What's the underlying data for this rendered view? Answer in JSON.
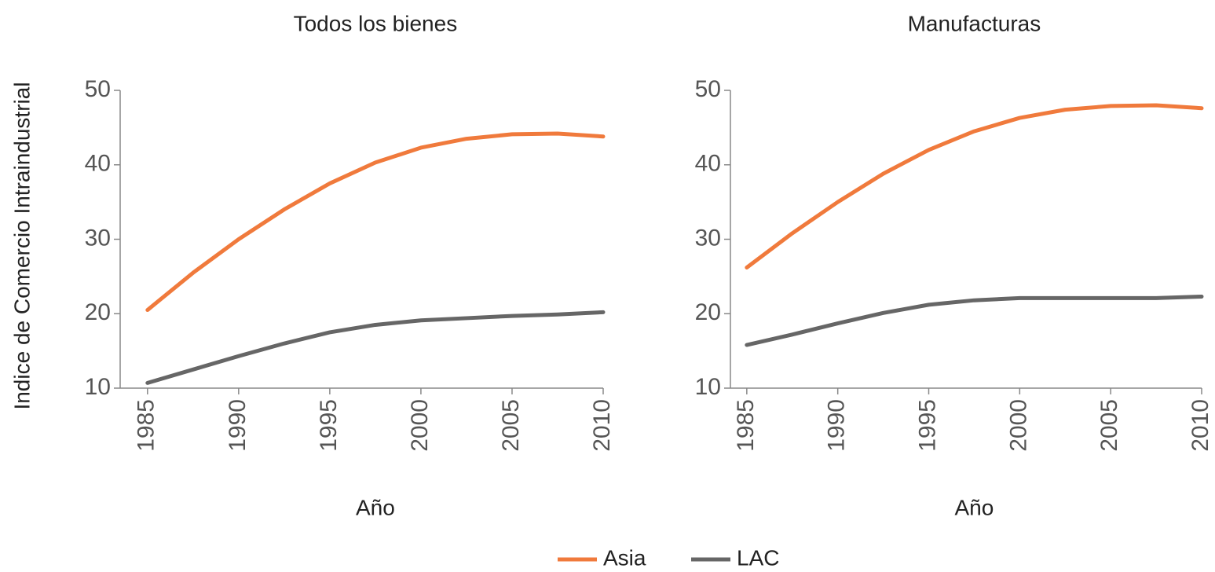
{
  "chart_data": [
    {
      "type": "line",
      "title": "Todos los bienes",
      "y_label": "Indice de Comercio Intraindustrial",
      "x_label": "Año",
      "x": [
        1985,
        1987.5,
        1990,
        1992.5,
        1995,
        1997.5,
        2000,
        2002.5,
        2005,
        2007.5,
        2010
      ],
      "series": [
        {
          "name": "Asia",
          "color": "#f07a3c",
          "values": [
            20.5,
            25.5,
            30,
            34,
            37.5,
            40.3,
            42.3,
            43.5,
            44.1,
            44.2,
            43.8
          ]
        },
        {
          "name": "LAC",
          "color": "#666666",
          "values": [
            10.7,
            12.5,
            14.3,
            16,
            17.5,
            18.5,
            19.1,
            19.4,
            19.7,
            19.9,
            20.2
          ]
        }
      ],
      "xlim": [
        1983.5,
        2010
      ],
      "xticks": [
        1985,
        1990,
        1995,
        2000,
        2005,
        2010
      ],
      "ylim": [
        10,
        50
      ],
      "yticks": [
        10,
        20,
        30,
        40,
        50
      ]
    },
    {
      "type": "line",
      "title": "Manufacturas",
      "x_label": "Año",
      "x": [
        1985,
        1987.5,
        1990,
        1992.5,
        1995,
        1997.5,
        2000,
        2002.5,
        2005,
        2007.5,
        2010
      ],
      "series": [
        {
          "color": "#f07a3c",
          "values": [
            26.2,
            30.8,
            35,
            38.8,
            42,
            44.5,
            46.3,
            47.4,
            47.9,
            48,
            47.6
          ]
        },
        {
          "color": "#666666",
          "values": [
            15.8,
            17.2,
            18.7,
            20.1,
            21.2,
            21.8,
            22.1,
            22.1,
            22.1,
            22.1,
            22.3
          ]
        }
      ],
      "xlim": [
        1984.1,
        2010
      ],
      "xticks": [
        1985,
        1990,
        1995,
        2000,
        2005,
        2010
      ],
      "ylim": [
        10,
        50
      ],
      "yticks": [
        10,
        20,
        30,
        40,
        50
      ]
    }
  ]
}
